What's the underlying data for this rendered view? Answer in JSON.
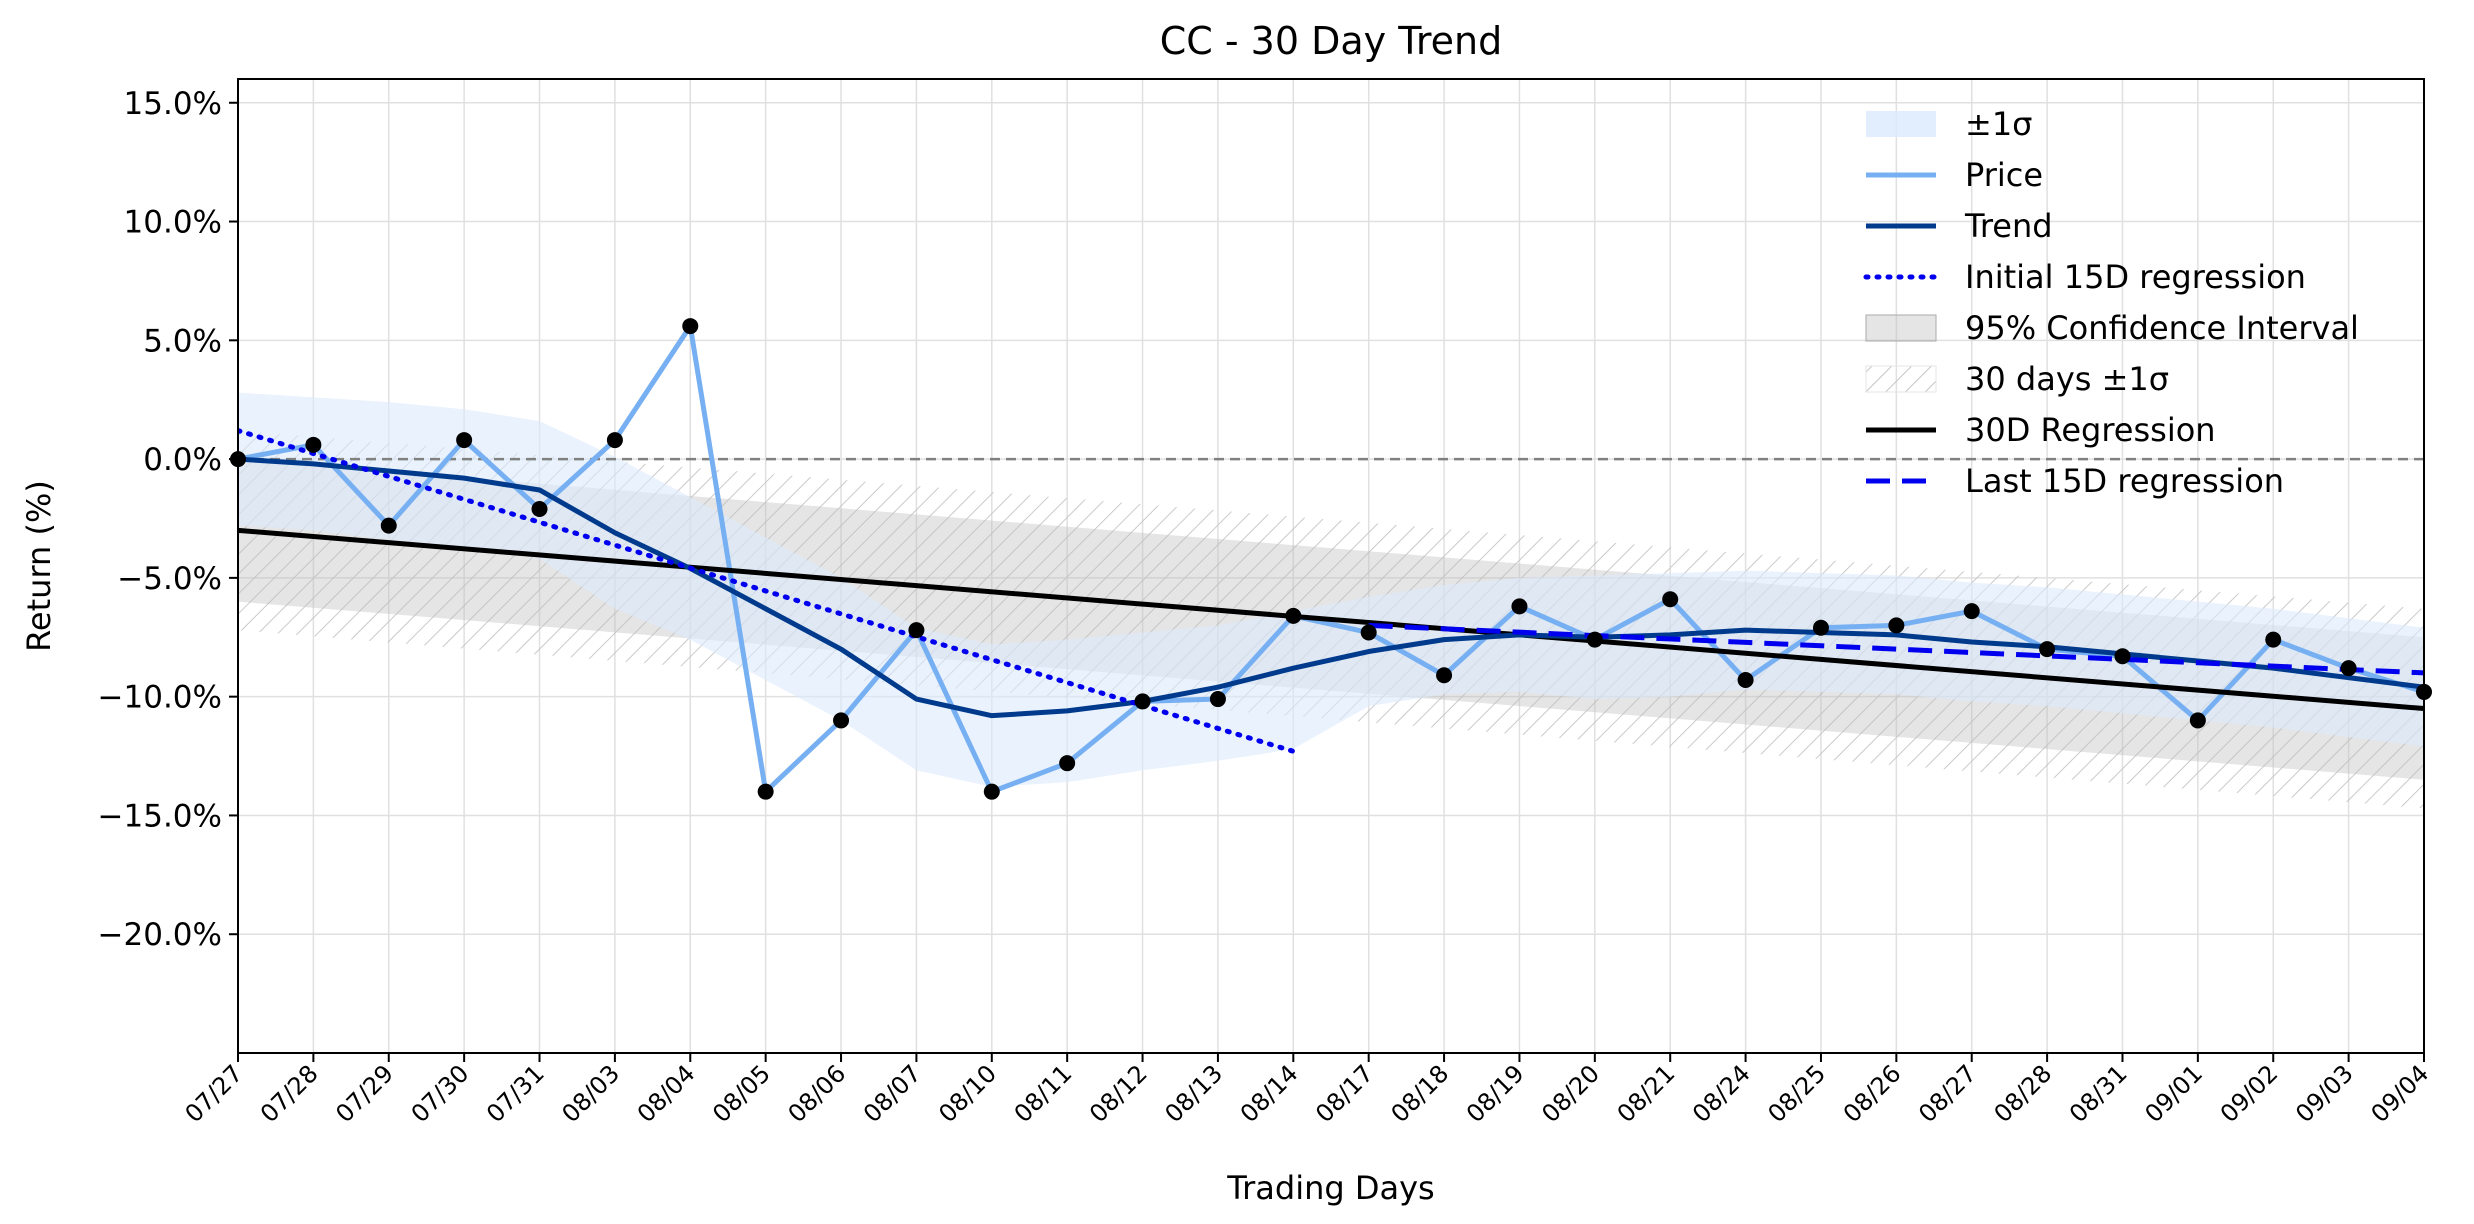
{
  "chart_data": {
    "type": "line",
    "title": "CC - 30 Day Trend",
    "xlabel": "Trading Days",
    "ylabel": "Return (%)",
    "ylim": [
      -25,
      16
    ],
    "yticks": [
      15,
      10,
      5,
      0,
      -5,
      -10,
      -15,
      -20
    ],
    "ytick_labels": [
      "15.0%",
      "10.0%",
      "5.0%",
      "0.0%",
      "−5.0%",
      "−10.0%",
      "−15.0%",
      "−20.0%"
    ],
    "categories": [
      "07/27",
      "07/28",
      "07/29",
      "07/30",
      "07/31",
      "08/03",
      "08/04",
      "08/05",
      "08/06",
      "08/07",
      "08/10",
      "08/11",
      "08/12",
      "08/13",
      "08/14",
      "08/17",
      "08/18",
      "08/19",
      "08/20",
      "08/21",
      "08/24",
      "08/25",
      "08/26",
      "08/27",
      "08/28",
      "08/31",
      "09/01",
      "09/02",
      "09/03",
      "09/04"
    ],
    "grid": true,
    "legend_position": "top-right",
    "zero_line": 0,
    "series": [
      {
        "name": "Price",
        "color": "#77b0f2",
        "values": [
          0.0,
          0.6,
          -2.8,
          0.8,
          -2.1,
          0.8,
          5.6,
          -14.0,
          -11.0,
          -7.2,
          -14.0,
          -12.8,
          -10.2,
          -10.1,
          -6.6,
          -7.3,
          -9.1,
          -6.2,
          -7.6,
          -5.9,
          -9.3,
          -7.1,
          -7.0,
          -6.4,
          -8.0,
          -8.3,
          -11.0,
          -7.6,
          -8.8,
          -9.8
        ]
      },
      {
        "name": "Trend",
        "color": "#003a8c",
        "values": [
          0.0,
          -0.2,
          -0.5,
          -0.8,
          -1.3,
          -3.1,
          -4.6,
          -6.3,
          -8.0,
          -10.1,
          -10.8,
          -10.6,
          -10.2,
          -9.6,
          -8.8,
          -8.1,
          -7.6,
          -7.4,
          -7.5,
          -7.4,
          -7.2,
          -7.3,
          -7.4,
          -7.7,
          -7.9,
          -8.2,
          -8.5,
          -8.8,
          -9.2,
          -9.6
        ]
      },
      {
        "name": "Initial 15D regression",
        "color": "#0000ee",
        "x_range": [
          0,
          14
        ],
        "y_range": [
          1.2,
          -12.3
        ]
      },
      {
        "name": "30D Regression",
        "color": "#000000",
        "x_range": [
          0,
          29
        ],
        "y_range": [
          -3.0,
          -10.5
        ]
      },
      {
        "name": "Last 15D regression",
        "color": "#0000ee",
        "x_range": [
          15,
          29
        ],
        "y_range": [
          -7.0,
          -9.0
        ]
      }
    ],
    "bands": [
      {
        "name": "±1σ",
        "color": "#dbeafc",
        "upper": [
          2.8,
          2.6,
          2.4,
          2.1,
          1.6,
          0.1,
          -1.6,
          -3.3,
          -5.0,
          -7.1,
          -7.8,
          -7.6,
          -7.3,
          -7.0,
          -6.4,
          -5.8,
          -5.3,
          -5.0,
          -4.9,
          -4.8,
          -4.7,
          -4.8,
          -4.9,
          -5.2,
          -5.4,
          -5.7,
          -6.0,
          -6.3,
          -6.7,
          -7.1
        ],
        "lower": [
          -2.8,
          -3.0,
          -3.4,
          -3.7,
          -4.2,
          -6.3,
          -7.6,
          -9.3,
          -11.0,
          -13.1,
          -13.8,
          -13.6,
          -13.1,
          -12.7,
          -12.2,
          -10.4,
          -9.9,
          -9.8,
          -10.1,
          -10.0,
          -9.7,
          -9.8,
          -9.9,
          -10.2,
          -10.4,
          -10.7,
          -11.0,
          -11.3,
          -11.7,
          -12.1
        ]
      },
      {
        "name": "95% Confidence Interval",
        "color": "#bfbfbf",
        "x_range": [
          0,
          29
        ],
        "upper_range": [
          0.0,
          -7.5
        ],
        "lower_range": [
          -6.0,
          -13.5
        ]
      },
      {
        "name": "30 days ±1σ",
        "color": "#d8d8d8",
        "hatched": true,
        "x_range": [
          0,
          29
        ],
        "upper_range": [
          1.2,
          -6.3
        ],
        "lower_range": [
          -7.2,
          -14.7
        ]
      }
    ],
    "legend": [
      "±1σ",
      "Price",
      "Trend",
      "Initial 15D regression",
      "95% Confidence Interval",
      "30 days ±1σ",
      "30D Regression",
      "Last 15D regression"
    ]
  }
}
